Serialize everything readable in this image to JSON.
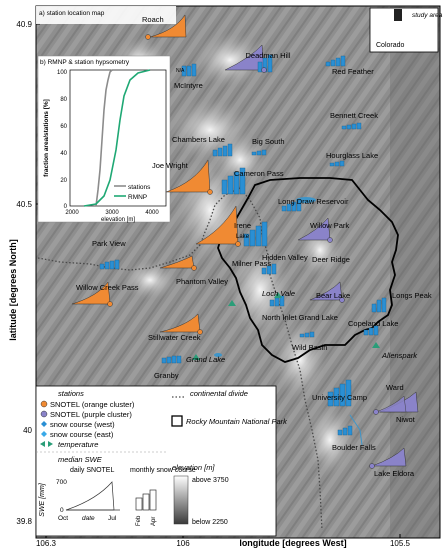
{
  "axes": {
    "ylabel": "latitude [degrees North]",
    "xlabel": "longitude [degrees West]",
    "y_ticks": [
      "40.9",
      "40.5",
      "40",
      "39.8"
    ],
    "x_ticks": [
      "106.3",
      "106",
      "105.5"
    ]
  },
  "inset_a": {
    "caption": "a) station location map",
    "study_area": "study area",
    "state": "Colorado"
  },
  "inset_b": {
    "caption": "b) RMNP & station hypsometry",
    "ylabel": "fraction area/stations [%]",
    "xlabel": "elevation [m]",
    "y_ticks": [
      "100",
      "80",
      "60",
      "40",
      "20",
      "0"
    ],
    "x_ticks": [
      "2000",
      "3000",
      "4000"
    ],
    "legend": [
      {
        "label": "stations",
        "color": "#8c8c8c"
      },
      {
        "label": "RMNP",
        "color": "#1fa874"
      }
    ]
  },
  "colors": {
    "snotel_orange": "#f08a33",
    "snotel_purple": "#8a83c9",
    "snow_course": "#2a8fd4",
    "temp_green": "#2a9d78",
    "park_border": "#000000",
    "divide": "#555555"
  },
  "stations": [
    {
      "name": "Roach"
    },
    {
      "name": "Deadman Hill"
    },
    {
      "name": "Red Feather"
    },
    {
      "name": "McIntyre"
    },
    {
      "name": "N/A"
    },
    {
      "name": "Chambers Lake"
    },
    {
      "name": "Big South"
    },
    {
      "name": "Bennett Creek"
    },
    {
      "name": "Hourglass Lake"
    },
    {
      "name": "Joe Wright"
    },
    {
      "name": "Cameron Pass"
    },
    {
      "name": "Long Draw Reservoir"
    },
    {
      "name": "Irene"
    },
    {
      "name": "Lake"
    },
    {
      "name": "Willow Park"
    },
    {
      "name": "Park View"
    },
    {
      "name": "Milner Pass"
    },
    {
      "name": "Hidden Valley"
    },
    {
      "name": "Deer Ridge"
    },
    {
      "name": "Willow Creek Pass"
    },
    {
      "name": "Phantom Valley"
    },
    {
      "name": "Loch Vale"
    },
    {
      "name": "Bear Lake"
    },
    {
      "name": "Longs Peak"
    },
    {
      "name": "Stillwater Creek"
    },
    {
      "name": "North Inlet Grand Lake"
    },
    {
      "name": "Copeland Lake"
    },
    {
      "name": "Wild Basin"
    },
    {
      "name": "Allenspark"
    },
    {
      "name": "Grand Lake"
    },
    {
      "name": "Granby"
    },
    {
      "name": "University Camp"
    },
    {
      "name": "Ward"
    },
    {
      "name": "Niwot"
    },
    {
      "name": "Boulder Falls"
    },
    {
      "name": "Lake Eldora"
    }
  ],
  "legend": {
    "stations_title": "stations",
    "snotel_orange": "SNOTEL (orange cluster)",
    "snotel_purple": "SNOTEL (purple cluster)",
    "snow_west": "snow course (west)",
    "snow_east": "snow course (east)",
    "temperature": "temperature",
    "divide": "continental divide",
    "park": "Rocky Mountain National Park",
    "elevation_title": "elevation [m]",
    "elev_high": "above 3750",
    "elev_low": "below 2250",
    "swe_title": "median SWE",
    "daily": "daily SNOTEL",
    "monthly": "monthly snow course",
    "swe_axis": "SWE [mm]",
    "swe_tick_top": "700",
    "swe_tick_bottom": "0",
    "date_oct": "Oct",
    "date_label": "date",
    "date_jul": "Jul",
    "month_feb": "Feb",
    "month_apr": "Apr"
  }
}
